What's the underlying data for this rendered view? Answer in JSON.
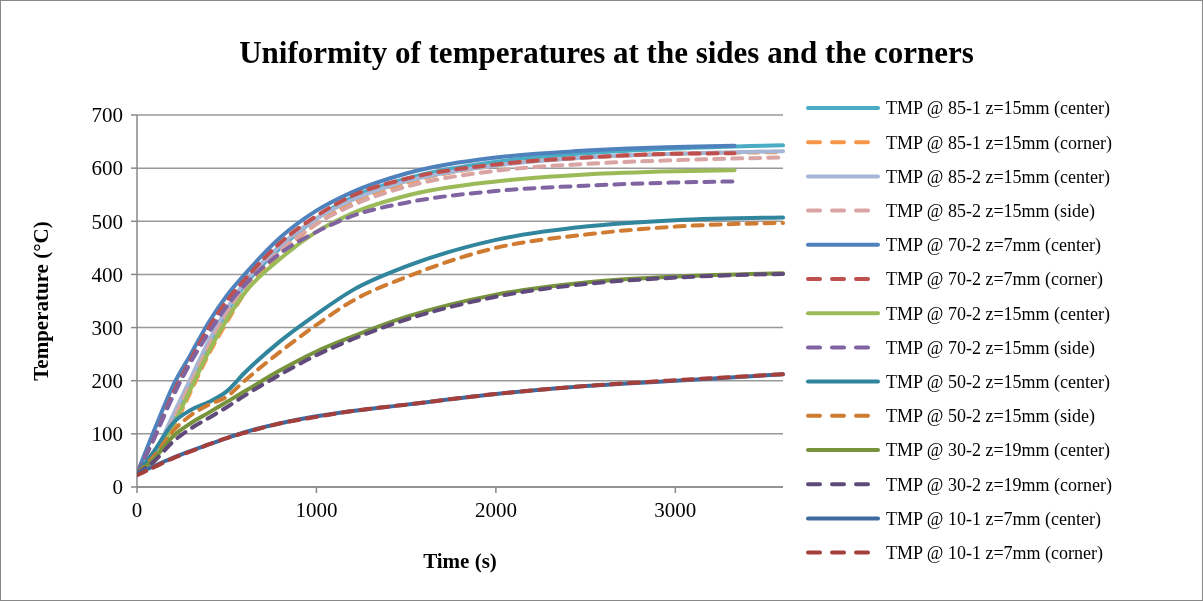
{
  "chart_data": {
    "type": "line",
    "title": "Uniformity of temperatures at the sides and the corners",
    "xlabel": "Time (s)",
    "ylabel": "Temperature (°C)",
    "xlim": [
      0,
      3600
    ],
    "xticks": [
      0,
      1000,
      2000,
      3000
    ],
    "ylim": [
      0,
      700
    ],
    "yticks": [
      0,
      100,
      200,
      300,
      400,
      500,
      600,
      700
    ],
    "grid": "y",
    "legend": "right",
    "series": [
      {
        "name": "TMP @ 85-1 z=15mm (center)",
        "color": "#4bacc6",
        "line_style": "solid",
        "x": [
          0,
          100,
          200,
          300,
          400,
          500,
          600,
          800,
          1000,
          1200,
          1500,
          2000,
          2500,
          3000,
          3600
        ],
        "values": [
          25,
          60,
          130,
          200,
          270,
          330,
          380,
          450,
          505,
          545,
          580,
          612,
          628,
          637,
          643
        ]
      },
      {
        "name": "TMP @ 85-1 z=15mm (corner)",
        "color": "#f79646",
        "line_style": "dashed",
        "x": [
          0,
          100,
          200,
          300,
          400,
          500,
          600,
          800,
          1000,
          1200,
          1500,
          2000,
          2500,
          3000,
          3600
        ],
        "values": [
          25,
          50,
          110,
          180,
          250,
          310,
          365,
          440,
          495,
          535,
          572,
          605,
          620,
          627,
          630
        ]
      },
      {
        "name": "TMP @ 85-2 z=15mm (center)",
        "color": "#a5b6d6",
        "line_style": "solid",
        "x": [
          0,
          100,
          200,
          300,
          400,
          500,
          600,
          800,
          1000,
          1200,
          1500,
          2000,
          2500,
          3000,
          3600
        ],
        "values": [
          25,
          65,
          135,
          205,
          275,
          335,
          385,
          455,
          505,
          540,
          575,
          605,
          620,
          627,
          632
        ]
      },
      {
        "name": "TMP @ 85-2 z=15mm (side)",
        "color": "#d9a5a4",
        "line_style": "dashed",
        "x": [
          0,
          100,
          200,
          300,
          400,
          500,
          600,
          800,
          1000,
          1200,
          1500,
          2000,
          2500,
          3000,
          3600
        ],
        "values": [
          25,
          60,
          125,
          195,
          265,
          325,
          375,
          445,
          495,
          530,
          565,
          595,
          608,
          615,
          620
        ]
      },
      {
        "name": "TMP @ 70-2 z=7mm (center)",
        "color": "#4f81bd",
        "line_style": "solid",
        "x": [
          0,
          100,
          200,
          300,
          400,
          500,
          600,
          800,
          1000,
          1200,
          1500,
          2000,
          2500,
          3000,
          3330
        ],
        "values": [
          25,
          110,
          190,
          250,
          310,
          360,
          400,
          470,
          520,
          555,
          590,
          620,
          633,
          640,
          642
        ]
      },
      {
        "name": "TMP @ 70-2 z=7mm (corner)",
        "color": "#c0504d",
        "line_style": "dashed",
        "x": [
          0,
          100,
          200,
          300,
          400,
          500,
          600,
          800,
          1000,
          1200,
          1500,
          2000,
          2500,
          3000,
          3330
        ],
        "values": [
          25,
          95,
          175,
          240,
          300,
          350,
          390,
          460,
          510,
          548,
          580,
          607,
          620,
          627,
          628
        ]
      },
      {
        "name": "TMP @ 70-2 z=15mm (center)",
        "color": "#9bbb59",
        "line_style": "solid",
        "x": [
          0,
          100,
          200,
          300,
          400,
          500,
          600,
          800,
          1000,
          1200,
          1500,
          2000,
          2500,
          3000,
          3330
        ],
        "values": [
          25,
          55,
          115,
          185,
          255,
          315,
          365,
          430,
          480,
          515,
          548,
          575,
          588,
          594,
          596
        ]
      },
      {
        "name": "TMP @ 70-2 z=15mm (side)",
        "color": "#8064a2",
        "line_style": "dashed",
        "x": [
          0,
          100,
          200,
          300,
          400,
          500,
          600,
          800,
          1000,
          1200,
          1500,
          2000,
          2500,
          3000,
          3330
        ],
        "values": [
          25,
          95,
          170,
          235,
          290,
          340,
          380,
          440,
          480,
          510,
          535,
          557,
          567,
          573,
          575
        ]
      },
      {
        "name": "TMP @ 50-2 z=15mm (center)",
        "color": "#31859c",
        "line_style": "solid",
        "x": [
          0,
          100,
          200,
          300,
          400,
          500,
          600,
          800,
          1000,
          1200,
          1500,
          2000,
          2500,
          3000,
          3600
        ],
        "values": [
          25,
          70,
          120,
          145,
          160,
          180,
          215,
          275,
          325,
          370,
          415,
          465,
          490,
          502,
          507
        ]
      },
      {
        "name": "TMP @ 50-2 z=15mm (side)",
        "color": "#d07b32",
        "line_style": "dashed",
        "x": [
          0,
          100,
          200,
          300,
          400,
          500,
          600,
          800,
          1000,
          1200,
          1500,
          2000,
          2500,
          3000,
          3600
        ],
        "values": [
          25,
          60,
          105,
          135,
          155,
          170,
          200,
          255,
          305,
          350,
          395,
          450,
          475,
          490,
          497
        ]
      },
      {
        "name": "TMP @ 30-2 z=19mm (center)",
        "color": "#77933c",
        "line_style": "solid",
        "x": [
          0,
          100,
          200,
          300,
          400,
          500,
          600,
          800,
          1000,
          1200,
          1500,
          2000,
          2500,
          3000,
          3600
        ],
        "values": [
          25,
          55,
          95,
          120,
          140,
          160,
          180,
          220,
          255,
          283,
          320,
          362,
          385,
          396,
          402
        ]
      },
      {
        "name": "TMP @ 30-2 z=19mm (corner)",
        "color": "#604a7b",
        "line_style": "dashed",
        "x": [
          0,
          100,
          200,
          300,
          400,
          500,
          600,
          800,
          1000,
          1200,
          1500,
          2000,
          2500,
          3000,
          3600
        ],
        "values": [
          25,
          50,
          85,
          110,
          130,
          150,
          172,
          212,
          248,
          278,
          315,
          358,
          382,
          394,
          401
        ]
      },
      {
        "name": "TMP @ 10-1 z=7mm (center)",
        "color": "#3e6aa0",
        "line_style": "solid",
        "x": [
          0,
          100,
          200,
          300,
          400,
          500,
          600,
          800,
          1000,
          1200,
          1500,
          2000,
          2500,
          3000,
          3600
        ],
        "values": [
          25,
          40,
          55,
          68,
          80,
          92,
          103,
          120,
          133,
          143,
          155,
          175,
          190,
          200,
          212
        ]
      },
      {
        "name": "TMP @ 10-1 z=7mm (corner)",
        "color": "#a53f3c",
        "line_style": "dashed",
        "x": [
          0,
          100,
          200,
          300,
          400,
          500,
          600,
          800,
          1000,
          1200,
          1500,
          2000,
          2500,
          3000,
          3600
        ],
        "values": [
          22,
          38,
          54,
          67,
          80,
          92,
          102,
          120,
          132,
          143,
          155,
          175,
          190,
          201,
          212
        ]
      }
    ]
  }
}
